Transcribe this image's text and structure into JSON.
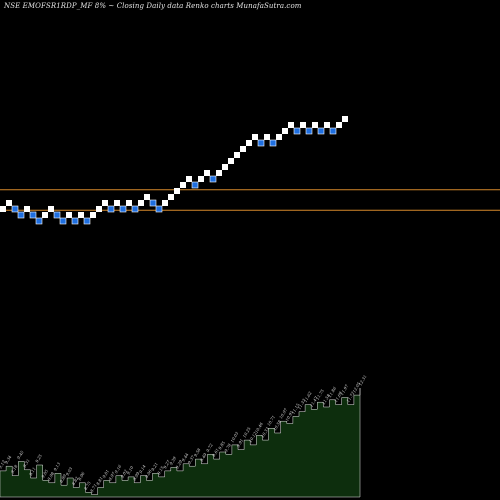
{
  "chart_data": {
    "type": "renko",
    "title": "NSE EMOFSR1RDP_MF 8% ~   Closing Daily data  Renko  charts MunafaSutra.com",
    "colors": {
      "background": "#000000",
      "up_brick": "#ffffff",
      "down_brick": "#1f6fe0",
      "down_brick_border": "#ffffff",
      "reference_line": "#d4872a",
      "volume_fill": "#0d2e0d",
      "volume_stroke": "#e8e8e8"
    },
    "brick_levels": [
      {
        "level": 0,
        "dir": "up"
      },
      {
        "level": 1,
        "dir": "up"
      },
      {
        "level": 0,
        "dir": "down"
      },
      {
        "level": -1,
        "dir": "down"
      },
      {
        "level": 0,
        "dir": "up"
      },
      {
        "level": -1,
        "dir": "down"
      },
      {
        "level": -2,
        "dir": "down"
      },
      {
        "level": -1,
        "dir": "up"
      },
      {
        "level": 0,
        "dir": "up"
      },
      {
        "level": -1,
        "dir": "down"
      },
      {
        "level": -2,
        "dir": "down"
      },
      {
        "level": -1,
        "dir": "up"
      },
      {
        "level": -2,
        "dir": "down"
      },
      {
        "level": -1,
        "dir": "up"
      },
      {
        "level": -2,
        "dir": "down"
      },
      {
        "level": -1,
        "dir": "up"
      },
      {
        "level": 0,
        "dir": "up"
      },
      {
        "level": 1,
        "dir": "up"
      },
      {
        "level": 0,
        "dir": "down"
      },
      {
        "level": 1,
        "dir": "up"
      },
      {
        "level": 0,
        "dir": "down"
      },
      {
        "level": 1,
        "dir": "up"
      },
      {
        "level": 0,
        "dir": "down"
      },
      {
        "level": 1,
        "dir": "up"
      },
      {
        "level": 2,
        "dir": "up"
      },
      {
        "level": 1,
        "dir": "down"
      },
      {
        "level": 0,
        "dir": "down"
      },
      {
        "level": 1,
        "dir": "up"
      },
      {
        "level": 2,
        "dir": "up"
      },
      {
        "level": 3,
        "dir": "up"
      },
      {
        "level": 4,
        "dir": "up"
      },
      {
        "level": 5,
        "dir": "up"
      },
      {
        "level": 4,
        "dir": "down"
      },
      {
        "level": 5,
        "dir": "up"
      },
      {
        "level": 6,
        "dir": "up"
      },
      {
        "level": 5,
        "dir": "down"
      },
      {
        "level": 6,
        "dir": "up"
      },
      {
        "level": 7,
        "dir": "up"
      },
      {
        "level": 8,
        "dir": "up"
      },
      {
        "level": 9,
        "dir": "up"
      },
      {
        "level": 10,
        "dir": "up"
      },
      {
        "level": 11,
        "dir": "up"
      },
      {
        "level": 12,
        "dir": "up"
      },
      {
        "level": 11,
        "dir": "down"
      },
      {
        "level": 12,
        "dir": "up"
      },
      {
        "level": 11,
        "dir": "down"
      },
      {
        "level": 12,
        "dir": "up"
      },
      {
        "level": 13,
        "dir": "up"
      },
      {
        "level": 14,
        "dir": "up"
      },
      {
        "level": 13,
        "dir": "down"
      },
      {
        "level": 14,
        "dir": "up"
      },
      {
        "level": 13,
        "dir": "down"
      },
      {
        "level": 14,
        "dir": "up"
      },
      {
        "level": 13,
        "dir": "down"
      },
      {
        "level": 14,
        "dir": "up"
      },
      {
        "level": 13,
        "dir": "down"
      },
      {
        "level": 14,
        "dir": "up"
      },
      {
        "level": 15,
        "dir": "up"
      }
    ],
    "reference_levels": [
      3.2,
      -0.2
    ],
    "volume_series": [
      0.3,
      0.34,
      0.26,
      0.38,
      0.31,
      0.24,
      0.35,
      0.22,
      0.2,
      0.28,
      0.18,
      0.24,
      0.16,
      0.2,
      0.12,
      0.1,
      0.16,
      0.22,
      0.2,
      0.26,
      0.22,
      0.25,
      0.2,
      0.26,
      0.22,
      0.28,
      0.25,
      0.3,
      0.33,
      0.3,
      0.36,
      0.34,
      0.4,
      0.36,
      0.44,
      0.4,
      0.46,
      0.44,
      0.52,
      0.48,
      0.56,
      0.52,
      0.6,
      0.56,
      0.66,
      0.62,
      0.72,
      0.7,
      0.76,
      0.8,
      0.86,
      0.82,
      0.88,
      0.84,
      0.9,
      0.86,
      0.92,
      0.86,
      0.94,
      1.0
    ],
    "volume_labels": [
      "9.12",
      "9.34",
      "9.18",
      "9.45",
      "9.31",
      "9.11",
      "9.25",
      "9.05",
      "8.98",
      "9.13",
      "8.89",
      "9.03",
      "8.82",
      "8.96",
      "8.75",
      "8.71",
      "8.81",
      "9.01",
      "8.97",
      "9.16",
      "9.02",
      "9.10",
      "8.99",
      "9.14",
      "9.06",
      "9.21",
      "9.15",
      "9.27",
      "9.39",
      "9.29",
      "9.44",
      "9.37",
      "9.58",
      "9.49",
      "9.72",
      "9.61",
      "9.85",
      "9.78",
      "10.03",
      "9.91",
      "10.25",
      "10.12",
      "10.46",
      "10.33",
      "10.71",
      "10.58",
      "10.97",
      "10.91",
      "11.15",
      "11.33",
      "11.62",
      "11.47",
      "11.75",
      "11.58",
      "11.86",
      "11.69",
      "11.97",
      "11.72",
      "12.05",
      "12.31"
    ]
  }
}
